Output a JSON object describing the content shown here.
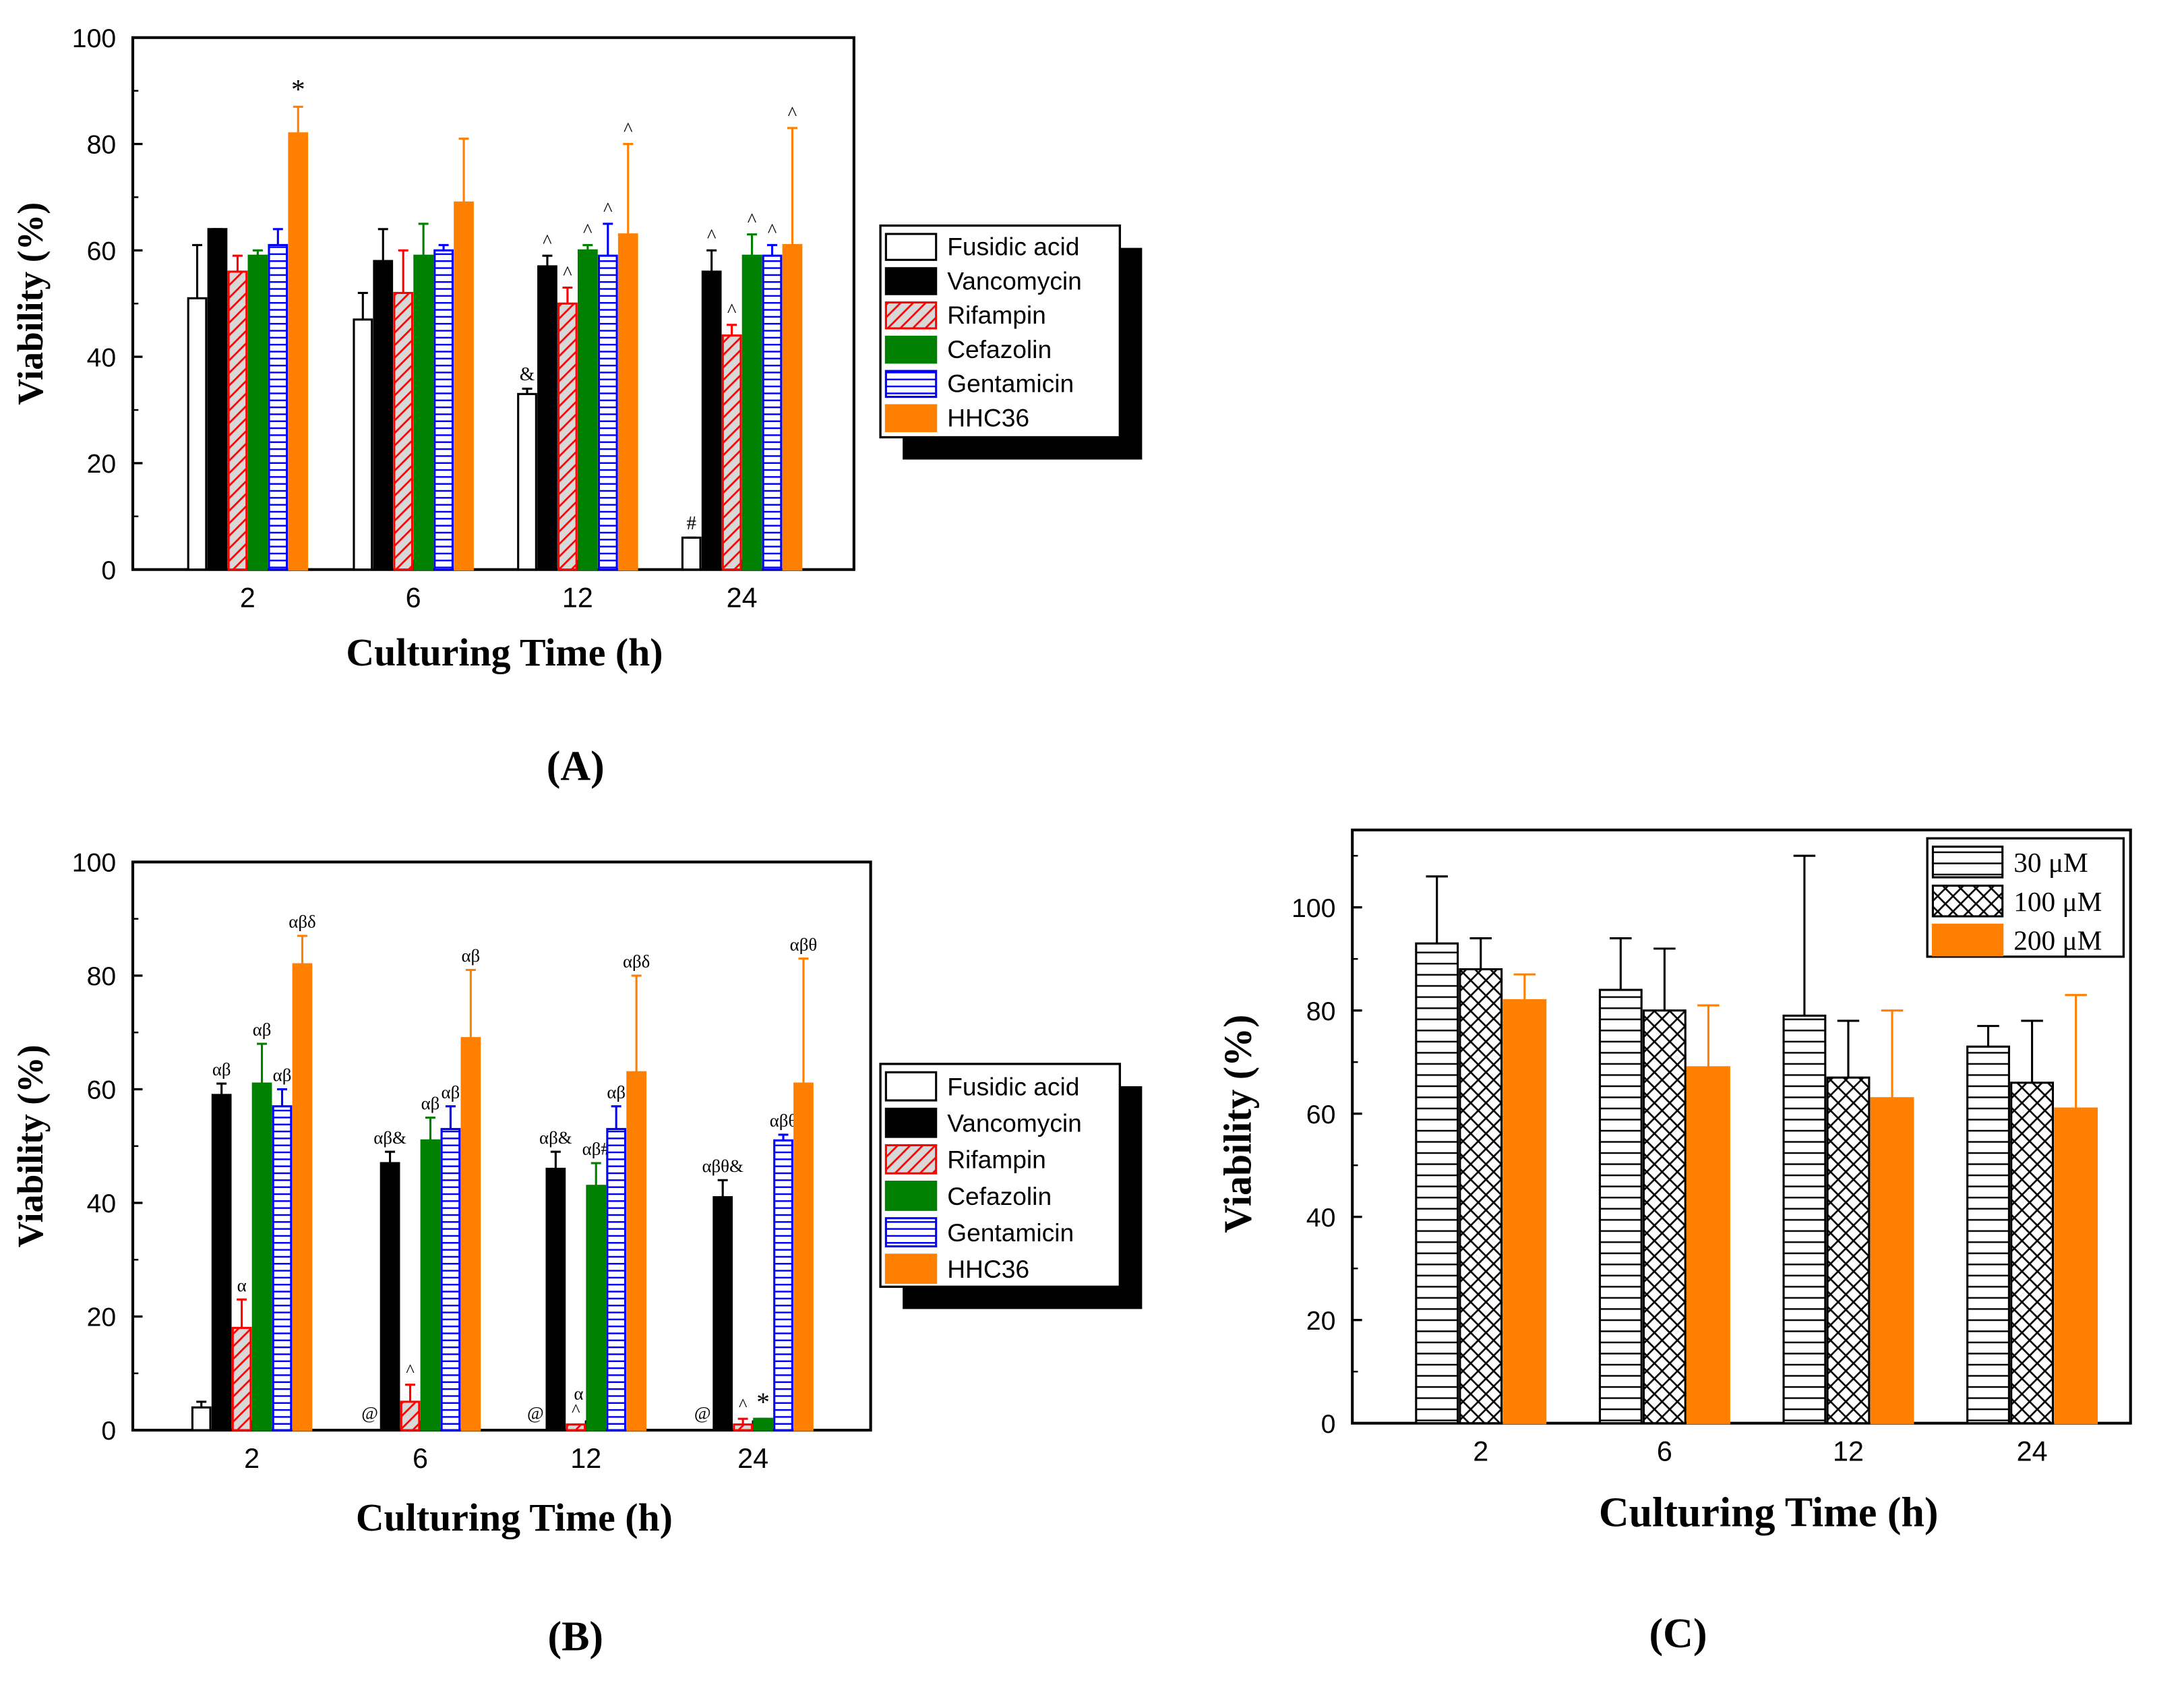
{
  "chart_data": [
    {
      "panel": "A",
      "type": "bar",
      "caption": "(A)",
      "xlabel": "Culturing Time (h)",
      "ylabel": "Viability (%)",
      "ylim": [
        0,
        100
      ],
      "yticks": [
        "0",
        "20",
        "40",
        "60",
        "80",
        "100"
      ],
      "categories": [
        "2",
        "6",
        "12",
        "24"
      ],
      "legend_position": "right",
      "series": [
        {
          "name": "Fusidic acid",
          "style": "open",
          "color": "#000000",
          "values": [
            51,
            47,
            33,
            6
          ],
          "errors": [
            10,
            5,
            1,
            0
          ],
          "marks": [
            "",
            "",
            "&",
            "#"
          ]
        },
        {
          "name": "Vancomycin",
          "style": "solid",
          "color": "#000000",
          "values": [
            64,
            58,
            57,
            56
          ],
          "errors": [
            0,
            6,
            2,
            4
          ],
          "marks": [
            "",
            "",
            "^",
            "^"
          ]
        },
        {
          "name": "Rifampin",
          "style": "diagonal",
          "color": "#ff0000",
          "values": [
            56,
            52,
            50,
            44
          ],
          "errors": [
            3,
            8,
            3,
            2
          ],
          "marks": [
            "",
            "",
            "^",
            "^"
          ]
        },
        {
          "name": "Cefazolin",
          "style": "solid",
          "color": "#008000",
          "values": [
            59,
            59,
            60,
            59
          ],
          "errors": [
            1,
            6,
            1,
            4
          ],
          "marks": [
            "",
            "",
            "^",
            "^"
          ]
        },
        {
          "name": "Gentamicin",
          "style": "horizontal",
          "color": "#0000ff",
          "values": [
            61,
            60,
            59,
            59
          ],
          "errors": [
            3,
            1,
            6,
            2
          ],
          "marks": [
            "",
            "",
            "^",
            "^"
          ]
        },
        {
          "name": "HHC36",
          "style": "solid",
          "color": "#ff8000",
          "values": [
            82,
            69,
            63,
            61
          ],
          "errors": [
            5,
            12,
            17,
            22
          ],
          "marks": [
            "*",
            "",
            "^",
            "^"
          ]
        }
      ]
    },
    {
      "panel": "B",
      "type": "bar",
      "caption": "(B)",
      "xlabel": "Culturing Time (h)",
      "ylabel": "Viability (%)",
      "ylim": [
        0,
        100
      ],
      "yticks": [
        "0",
        "20",
        "40",
        "60",
        "80",
        "100"
      ],
      "categories": [
        "2",
        "6",
        "12",
        "24"
      ],
      "legend_position": "right",
      "series": [
        {
          "name": "Fusidic acid",
          "style": "open",
          "color": "#000000",
          "values": [
            4,
            0,
            0,
            0
          ],
          "errors": [
            1,
            0,
            0,
            0
          ],
          "marks": [
            "",
            "@",
            "@",
            "@"
          ]
        },
        {
          "name": "Vancomycin",
          "style": "solid",
          "color": "#000000",
          "values": [
            59,
            47,
            46,
            41
          ],
          "errors": [
            2,
            2,
            3,
            3
          ],
          "marks": [
            "αβ",
            "αβ&",
            "αβ&",
            "αβθ&"
          ]
        },
        {
          "name": "Rifampin",
          "style": "diagonal",
          "color": "#ff0000",
          "values": [
            18,
            5,
            1,
            1
          ],
          "errors": [
            5,
            3,
            0,
            1
          ],
          "marks": [
            "α",
            "^",
            "^",
            "^"
          ]
        },
        {
          "name": "Cefazolin",
          "style": "solid",
          "color": "#008000",
          "values": [
            61,
            51,
            43,
            2
          ],
          "errors": [
            7,
            4,
            4,
            0
          ],
          "marks": [
            "αβ",
            "αβ",
            "αβ#",
            "*"
          ]
        },
        {
          "name": "Gentamicin",
          "style": "horizontal",
          "color": "#0000ff",
          "values": [
            57,
            53,
            53,
            51
          ],
          "errors": [
            3,
            4,
            4,
            1
          ],
          "marks": [
            "αβ",
            "αβ",
            "αβ",
            "αβθ"
          ]
        },
        {
          "name": "HHC36",
          "style": "solid",
          "color": "#ff8000",
          "values": [
            82,
            69,
            63,
            61
          ],
          "errors": [
            5,
            12,
            17,
            22
          ],
          "marks": [
            "αβδ",
            "αβ",
            "αβδ",
            "αβθ"
          ]
        }
      ],
      "extra_marks": [
        {
          "category": "12",
          "series": "Rifampin",
          "text": "α"
        }
      ]
    },
    {
      "panel": "C",
      "type": "bar",
      "caption": "(C)",
      "xlabel": "Culturing Time (h)",
      "ylabel": "Viability (%)",
      "ylim": [
        0,
        115
      ],
      "yticks": [
        "0",
        "20",
        "40",
        "60",
        "80",
        "100"
      ],
      "categories": [
        "2",
        "6",
        "12",
        "24"
      ],
      "legend_position": "top-right",
      "series": [
        {
          "name": "30 μM",
          "style": "horizontal",
          "color": "#000000",
          "values": [
            93,
            84,
            79,
            73
          ],
          "errors": [
            13,
            10,
            31,
            4
          ]
        },
        {
          "name": "100 μM",
          "style": "crosshatch",
          "color": "#000000",
          "values": [
            88,
            80,
            67,
            66
          ],
          "errors": [
            6,
            12,
            11,
            12
          ]
        },
        {
          "name": "200 μM",
          "style": "solid",
          "color": "#ff8000",
          "values": [
            82,
            69,
            63,
            61
          ],
          "errors": [
            5,
            12,
            17,
            22
          ]
        }
      ]
    }
  ]
}
